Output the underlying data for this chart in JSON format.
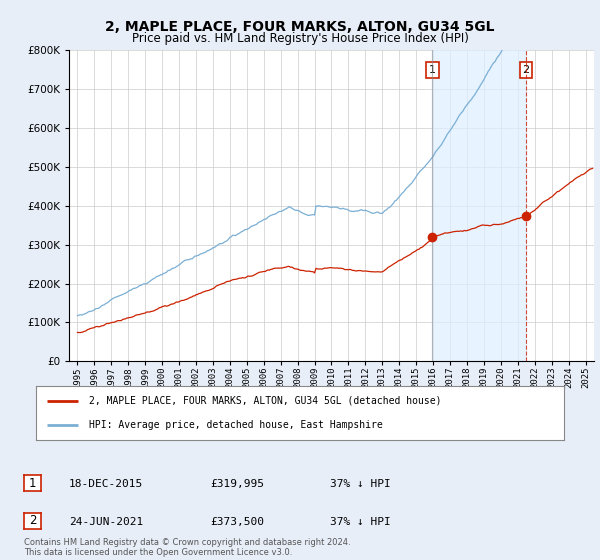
{
  "title": "2, MAPLE PLACE, FOUR MARKS, ALTON, GU34 5GL",
  "subtitle": "Price paid vs. HM Land Registry's House Price Index (HPI)",
  "transaction1_date": 2015.96,
  "transaction1_price": 319995,
  "transaction2_date": 2021.48,
  "transaction2_price": 373500,
  "legend_property": "2, MAPLE PLACE, FOUR MARKS, ALTON, GU34 5GL (detached house)",
  "legend_hpi": "HPI: Average price, detached house, East Hampshire",
  "footer": "Contains HM Land Registry data © Crown copyright and database right 2024.\nThis data is licensed under the Open Government Licence v3.0.",
  "hpi_color": "#7bafd4",
  "price_color": "#cc2200",
  "vline1_color": "#888888",
  "vline2_color": "#cc2200",
  "shade_color": "#ddeeff",
  "background_color": "#e8eef8",
  "plot_bg_color": "#ffffff",
  "ylim": [
    0,
    800000
  ],
  "xlim_start": 1994.5,
  "xlim_end": 2025.5,
  "title_fontsize": 10,
  "subtitle_fontsize": 8.5
}
